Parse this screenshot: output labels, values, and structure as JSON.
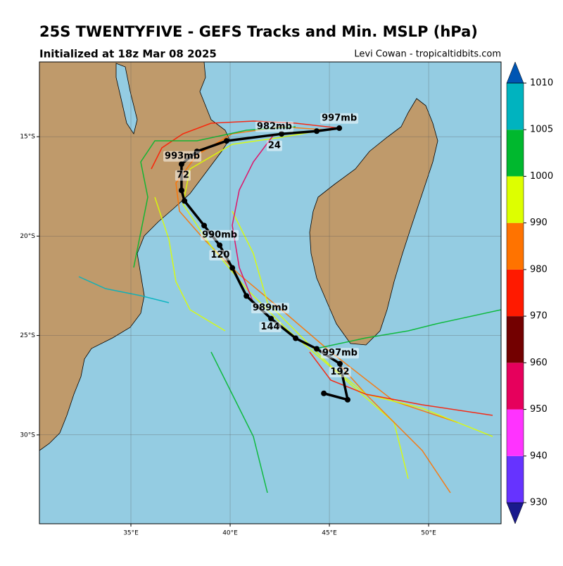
{
  "chart_data": {
    "type": "track-map",
    "title": "25S TWENTYFIVE - GEFS Tracks and Min. MSLP (hPa)",
    "subtitle": "Initialized at 18z Mar 08 2025",
    "credit": "Levi Cowan - tropicaltidbits.com",
    "xlim": [
      30.39,
      53.65
    ],
    "ylim": [
      -34.47,
      -11.24
    ],
    "xticks": [
      {
        "value": 35,
        "label": "35°E"
      },
      {
        "value": 40,
        "label": "40°E"
      },
      {
        "value": 45,
        "label": "45°E"
      },
      {
        "value": 50,
        "label": "50°E"
      }
    ],
    "yticks": [
      {
        "value": -15,
        "label": "15°S"
      },
      {
        "value": -20,
        "label": "20°S"
      },
      {
        "value": -25,
        "label": "25°S"
      },
      {
        "value": -30,
        "label": "30°S"
      }
    ],
    "grid": true,
    "mean_track": {
      "lon": [
        45.5,
        44.36,
        42.59,
        39.82,
        38.33,
        37.55,
        37.55,
        37.7,
        38.69,
        39.47,
        40.11,
        40.82,
        42.06,
        43.3,
        44.36,
        45.53,
        45.92,
        44.72
      ],
      "lat": [
        -14.57,
        -14.72,
        -14.86,
        -15.21,
        -15.74,
        -16.38,
        -17.7,
        -18.23,
        -19.47,
        -20.46,
        -21.6,
        -23.01,
        -24.15,
        -25.14,
        -25.67,
        -26.42,
        -28.23,
        -27.91
      ]
    },
    "annotations": [
      {
        "text": "997mb",
        "lon": 45.5,
        "lat": -14.08
      },
      {
        "text": "982mb",
        "lon": 42.23,
        "lat": -14.5
      },
      {
        "text": "24",
        "lon": 42.23,
        "lat": -15.46
      },
      {
        "text": "993mb",
        "lon": 37.59,
        "lat": -15.99
      },
      {
        "text": "72",
        "lon": 37.62,
        "lat": -16.95
      },
      {
        "text": "990mb",
        "lon": 39.47,
        "lat": -19.96
      },
      {
        "text": "120",
        "lon": 39.5,
        "lat": -20.96
      },
      {
        "text": "989mb",
        "lon": 42.02,
        "lat": -23.62
      },
      {
        "text": "144",
        "lon": 42.02,
        "lat": -24.57
      },
      {
        "text": "997mb",
        "lon": 45.53,
        "lat": -25.89
      },
      {
        "text": "192",
        "lon": 45.53,
        "lat": -26.84
      }
    ],
    "colorbar": {
      "ticks": [
        930,
        940,
        950,
        960,
        970,
        980,
        990,
        1000,
        1005,
        1010
      ],
      "colors": [
        "#1a1a8c",
        "#6633ff",
        "#ff33ff",
        "#e6005c",
        "#730000",
        "#ff1a00",
        "#ff7300",
        "#ddff00",
        "#00b82e",
        "#00b3bf",
        "#0055b3"
      ]
    }
  }
}
